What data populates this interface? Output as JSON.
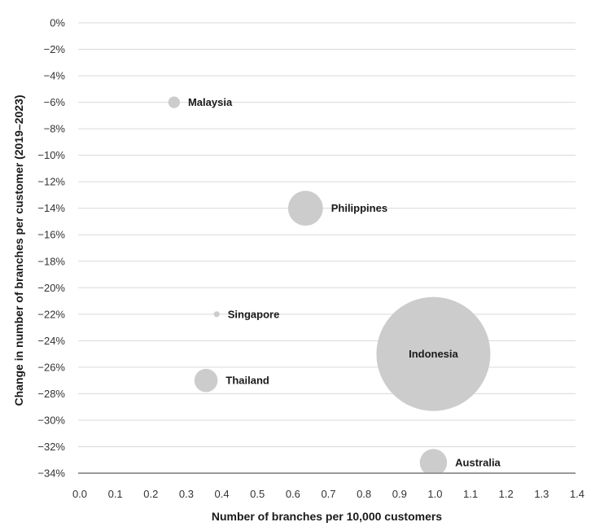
{
  "chart_data": {
    "type": "scatter",
    "variant": "bubble",
    "title": "",
    "xlabel": "Number of branches per 10,000 customers",
    "ylabel": "Change in number of branches per customer (2019–2023)",
    "xlim": [
      0.0,
      1.4
    ],
    "ylim": [
      -34,
      0
    ],
    "x_ticks": [
      "0.0",
      "0.1",
      "0.2",
      "0.3",
      "0.4",
      "0.5",
      "0.6",
      "0.7",
      "0.8",
      "0.9",
      "1.0",
      "1.1",
      "1.2",
      "1.3",
      "1.4"
    ],
    "y_ticks": [
      "0%",
      "−2%",
      "−4%",
      "−6%",
      "−8%",
      "−10%",
      "−12%",
      "−14%",
      "−16%",
      "−18%",
      "−20%",
      "−22%",
      "−24%",
      "−26%",
      "−28%",
      "−30%",
      "−32%",
      "−34%"
    ],
    "grid": true,
    "points": [
      {
        "label": "Malaysia",
        "x": 0.27,
        "y": -6.0,
        "size": 4,
        "label_position": "right"
      },
      {
        "label": "Philippines",
        "x": 0.64,
        "y": -14.0,
        "size": 36,
        "label_position": "right"
      },
      {
        "label": "Singapore",
        "x": 0.39,
        "y": -22.0,
        "size": 1,
        "label_position": "right"
      },
      {
        "label": "Indonesia",
        "x": 1.0,
        "y": -25.0,
        "size": 385,
        "label_position": "center"
      },
      {
        "label": "Thailand",
        "x": 0.36,
        "y": -27.0,
        "size": 16,
        "label_position": "right"
      },
      {
        "label": "Australia",
        "x": 1.0,
        "y": -33.2,
        "size": 22,
        "label_position": "right"
      }
    ],
    "colors": {
      "bubble": "#cccccc",
      "grid": "#d9d9d9",
      "axis": "#999999"
    }
  }
}
